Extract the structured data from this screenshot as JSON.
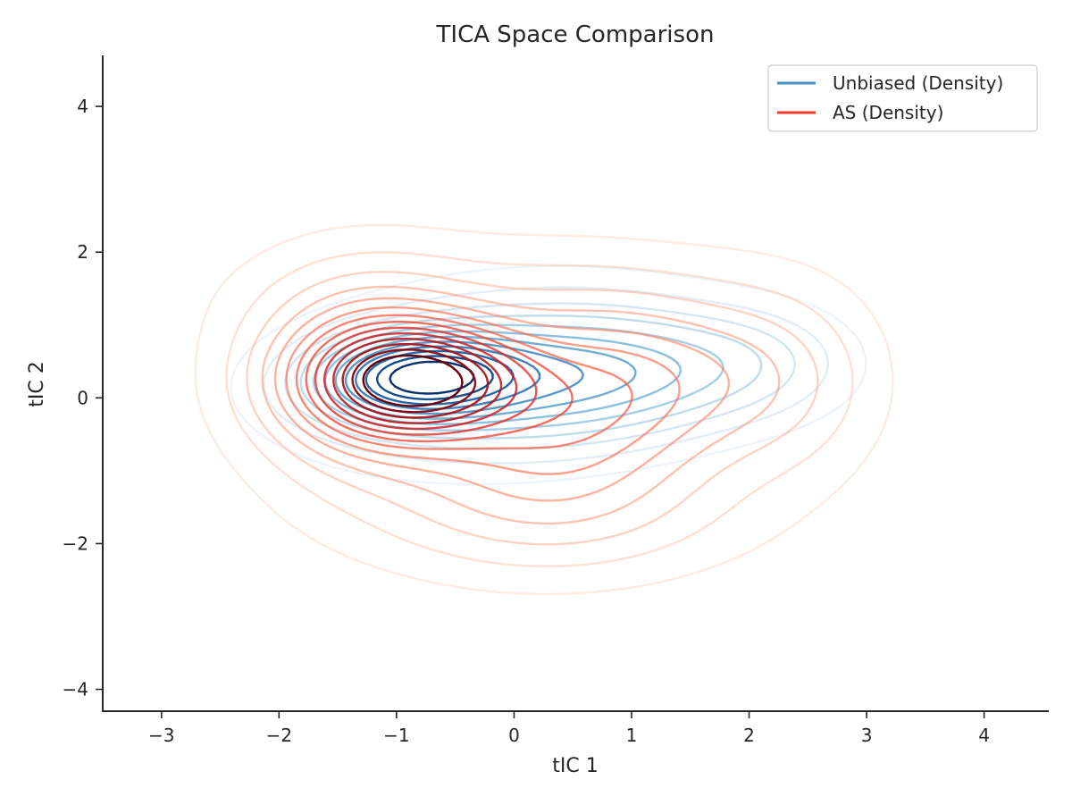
{
  "chart_data": {
    "type": "contour",
    "title": "TICA Space Comparison",
    "xlabel": "tIC 1",
    "ylabel": "tIC 2",
    "xlim": [
      -3.5,
      4.55
    ],
    "ylim": [
      -4.3,
      4.7
    ],
    "xticks": [
      -3,
      -2,
      -1,
      0,
      1,
      2,
      3,
      4
    ],
    "yticks": [
      -4,
      -2,
      0,
      2,
      4
    ],
    "x_tick_labels": [
      "−3",
      "−2",
      "−1",
      "0",
      "1",
      "2",
      "3",
      "4"
    ],
    "y_tick_labels": [
      "−4",
      "−2",
      "0",
      "2",
      "4"
    ],
    "grid": false,
    "legend_position": "top-right",
    "series": [
      {
        "name": "Unbiased (Density)",
        "color": "#4292c6",
        "colormap": "Blues",
        "peak": [
          -0.85,
          0.28
        ],
        "approx_extent_x": [
          -2.6,
          2.9
        ],
        "approx_extent_y": [
          -1.6,
          2.1
        ],
        "num_levels": 12
      },
      {
        "name": "AS (Density)",
        "color": "#ef3b2c",
        "colormap": "Reds",
        "peak": [
          -0.8,
          0.25
        ],
        "approx_extent_x": [
          -2.65,
          3.15
        ],
        "approx_extent_y": [
          -2.95,
          2.5
        ],
        "num_levels": 14
      }
    ]
  }
}
